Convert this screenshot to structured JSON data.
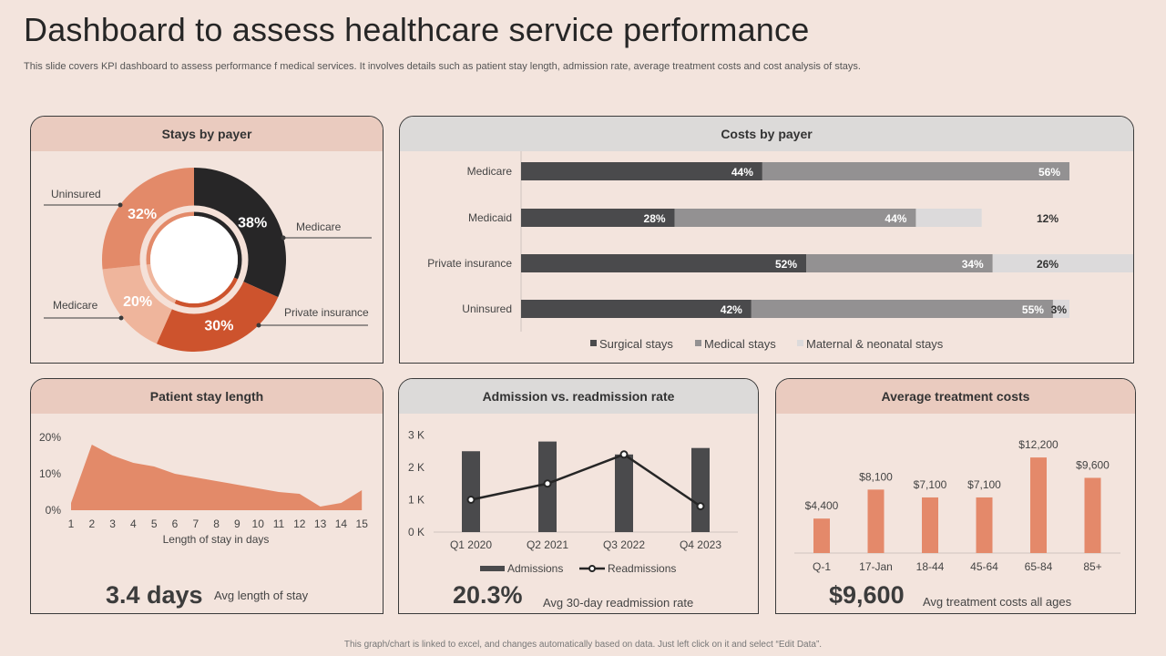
{
  "page": {
    "title": "Dashboard to assess healthcare service performance",
    "subtitle": "This slide covers KPI dashboard to assess performance f medical services. It involves details such as patient stay length, admission rate, average treatment costs and  cost analysis of stays.",
    "footer": "This graph/chart is linked to excel, and changes automatically based on data. Just left click on it and select “Edit Data”."
  },
  "panels": {
    "stays": {
      "title": "Stays by payer"
    },
    "costs": {
      "title": "Costs by payer"
    },
    "length": {
      "title": "Patient stay length",
      "kpi_value": "3.4 days",
      "kpi_label": "Avg length of stay"
    },
    "admission": {
      "title": "Admission vs. readmission rate",
      "kpi_value": "20.3%",
      "kpi_label": "Avg 30-day readmission rate"
    },
    "treatment": {
      "title": "Average treatment costs",
      "kpi_value": "$9,600",
      "kpi_label": "Avg treatment costs all ages"
    }
  },
  "colors": {
    "dark": "#272627",
    "mid_gray": "#939192",
    "light_gray": "#dcdadb",
    "orange_dark": "#cd532d",
    "orange": "#e38a69",
    "orange_light": "#efb59c",
    "bar_orange": "#e4896a"
  },
  "chart_data": [
    {
      "id": "stays",
      "type": "pie",
      "title": "Stays by payer",
      "slices": [
        {
          "label": "Medicare",
          "value": 38,
          "text": "38%",
          "color": "#272627"
        },
        {
          "label": "Private insurance",
          "value": 30,
          "text": "30%",
          "color": "#cd532d"
        },
        {
          "label": "Medicare",
          "value": 20,
          "text": "20%",
          "color": "#efb59c"
        },
        {
          "label": "Uninsured",
          "value": 32,
          "text": "32%",
          "color": "#e38a69"
        }
      ]
    },
    {
      "id": "costs",
      "type": "bar",
      "orientation": "horizontal",
      "stacked": true,
      "title": "Costs by payer",
      "categories": [
        "Medicare",
        "Medicaid",
        "Private insurance",
        "Uninsured"
      ],
      "series": [
        {
          "name": "Surgical stays",
          "values": [
            44,
            28,
            52,
            42
          ],
          "labels": [
            "44%",
            "28%",
            "52%",
            "42%"
          ],
          "color": "#4a4a4c",
          "text_color": "#ffffff"
        },
        {
          "name": "Medical stays",
          "values": [
            56,
            44,
            34,
            55
          ],
          "labels": [
            "56%",
            "44%",
            "34%",
            "55%"
          ],
          "color": "#939192",
          "text_color": "#ffffff"
        },
        {
          "name": "Maternal & neonatal stays",
          "values": [
            0,
            12,
            26,
            3
          ],
          "labels": [
            "",
            "12%",
            "26%",
            "3%"
          ],
          "color": "#dcdadb",
          "text_color": "#333333"
        }
      ]
    },
    {
      "id": "length",
      "type": "area",
      "title": "Patient stay length",
      "x": [
        1,
        2,
        3,
        4,
        5,
        6,
        7,
        8,
        9,
        10,
        11,
        12,
        13,
        14,
        15
      ],
      "y": [
        2,
        18,
        15,
        13,
        12,
        10,
        9,
        8,
        7,
        6,
        5,
        4.5,
        1,
        2,
        5.5
      ],
      "xlabel": "Length of stay in days",
      "ytick_labels": [
        "0%",
        "10%",
        "20%"
      ],
      "ylim": [
        0,
        20
      ],
      "color": "#e38a69"
    },
    {
      "id": "admission",
      "type": "bar",
      "title": "Admission vs. readmission rate",
      "categories": [
        "Q1 2020",
        "Q2 2021",
        "Q3 2022",
        "Q4 2023"
      ],
      "ytick_labels": [
        "0 K",
        "1 K",
        "2 K",
        "3 K"
      ],
      "ylim": [
        0,
        3
      ],
      "series": [
        {
          "name": "Admissions",
          "kind": "bar",
          "values": [
            2.5,
            2.8,
            2.4,
            2.6
          ],
          "color": "#4a4a4c"
        },
        {
          "name": "Readmissions",
          "kind": "line",
          "values": [
            1.0,
            1.5,
            2.4,
            0.8
          ],
          "color": "#262626"
        }
      ]
    },
    {
      "id": "treatment",
      "type": "bar",
      "title": "Average treatment costs",
      "categories": [
        "Q-1",
        "17-Jan",
        "18-44",
        "45-64",
        "65-84",
        "85+"
      ],
      "values": [
        4400,
        8100,
        7100,
        7100,
        12200,
        9600
      ],
      "labels": [
        "$4,400",
        "$8,100",
        "$7,100",
        "$7,100",
        "$12,200",
        "$9,600"
      ],
      "ylim": [
        0,
        14000
      ],
      "color": "#e4896a"
    }
  ]
}
